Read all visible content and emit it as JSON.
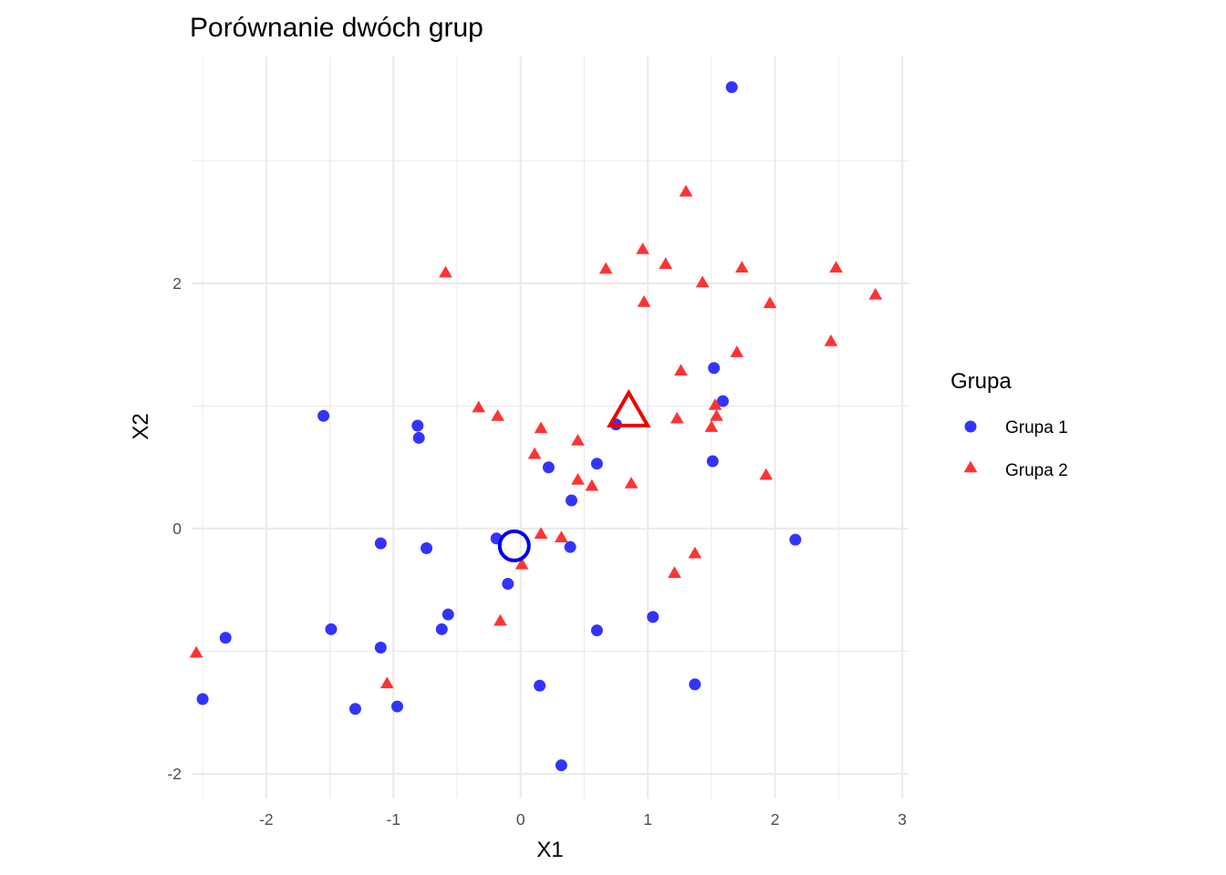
{
  "chart_data": {
    "type": "scatter",
    "title": "Porównanie dwóch grup",
    "xlabel": "X1",
    "ylabel": "X2",
    "xlim": [
      -2.58,
      3.05
    ],
    "ylim": [
      -2.2,
      3.85
    ],
    "x_ticks": [
      {
        "value": -2,
        "label": "-2"
      },
      {
        "value": -1,
        "label": "-1"
      },
      {
        "value": 0,
        "label": "0"
      },
      {
        "value": 1,
        "label": "1"
      },
      {
        "value": 2,
        "label": "2"
      },
      {
        "value": 3,
        "label": "3"
      }
    ],
    "y_ticks": [
      {
        "value": -2,
        "label": "-2"
      },
      {
        "value": 0,
        "label": "0"
      },
      {
        "value": 2,
        "label": "2"
      }
    ],
    "grid": true,
    "legend": {
      "title": "Grupa",
      "position": "right"
    },
    "series": [
      {
        "name": "Grupa 1",
        "shape": "circle",
        "color": "#3333FF",
        "points": [
          [
            1.66,
            3.6
          ],
          [
            1.52,
            1.31
          ],
          [
            1.59,
            1.04
          ],
          [
            1.51,
            0.55
          ],
          [
            -1.55,
            0.92
          ],
          [
            -0.81,
            0.84
          ],
          [
            -0.8,
            0.74
          ],
          [
            0.75,
            0.85
          ],
          [
            0.6,
            0.53
          ],
          [
            0.22,
            0.5
          ],
          [
            0.4,
            0.23
          ],
          [
            -0.19,
            -0.08
          ],
          [
            -0.1,
            -0.45
          ],
          [
            0.39,
            -0.15
          ],
          [
            -1.1,
            -0.12
          ],
          [
            -0.74,
            -0.16
          ],
          [
            2.16,
            -0.09
          ],
          [
            -2.32,
            -0.89
          ],
          [
            -1.49,
            -0.82
          ],
          [
            -1.1,
            -0.97
          ],
          [
            -0.62,
            -0.82
          ],
          [
            -0.57,
            -0.7
          ],
          [
            0.6,
            -0.83
          ],
          [
            1.04,
            -0.72
          ],
          [
            0.15,
            -1.28
          ],
          [
            1.37,
            -1.27
          ],
          [
            -2.5,
            -1.39
          ],
          [
            -1.3,
            -1.47
          ],
          [
            -0.97,
            -1.45
          ],
          [
            0.32,
            -1.93
          ]
        ]
      },
      {
        "name": "Grupa 2",
        "shape": "triangle",
        "color": "#FF3333",
        "points": [
          [
            1.3,
            2.74
          ],
          [
            0.96,
            2.27
          ],
          [
            1.14,
            2.15
          ],
          [
            0.67,
            2.11
          ],
          [
            1.74,
            2.12
          ],
          [
            2.48,
            2.12
          ],
          [
            1.43,
            2.0
          ],
          [
            2.79,
            1.9
          ],
          [
            -0.59,
            2.08
          ],
          [
            0.97,
            1.84
          ],
          [
            1.96,
            1.83
          ],
          [
            2.44,
            1.52
          ],
          [
            1.7,
            1.43
          ],
          [
            1.26,
            1.28
          ],
          [
            1.53,
            1.0
          ],
          [
            1.54,
            0.91
          ],
          [
            1.23,
            0.89
          ],
          [
            1.5,
            0.82
          ],
          [
            -0.33,
            0.98
          ],
          [
            -0.18,
            0.91
          ],
          [
            0.16,
            0.81
          ],
          [
            0.45,
            0.71
          ],
          [
            0.11,
            0.6
          ],
          [
            0.45,
            0.39
          ],
          [
            0.56,
            0.34
          ],
          [
            0.87,
            0.36
          ],
          [
            1.93,
            0.43
          ],
          [
            0.16,
            -0.05
          ],
          [
            0.32,
            -0.08
          ],
          [
            0.01,
            -0.3
          ],
          [
            1.37,
            -0.21
          ],
          [
            1.21,
            -0.37
          ],
          [
            -0.16,
            -0.76
          ],
          [
            -2.55,
            -1.02
          ],
          [
            -1.05,
            -1.27
          ]
        ]
      }
    ],
    "centroids": [
      {
        "group": "Grupa 1",
        "shape": "circle",
        "color": "#0000EE",
        "x": -0.05,
        "y": -0.14
      },
      {
        "group": "Grupa 2",
        "shape": "triangle",
        "color": "#EE0000",
        "x": 0.85,
        "y": 0.93
      }
    ]
  }
}
